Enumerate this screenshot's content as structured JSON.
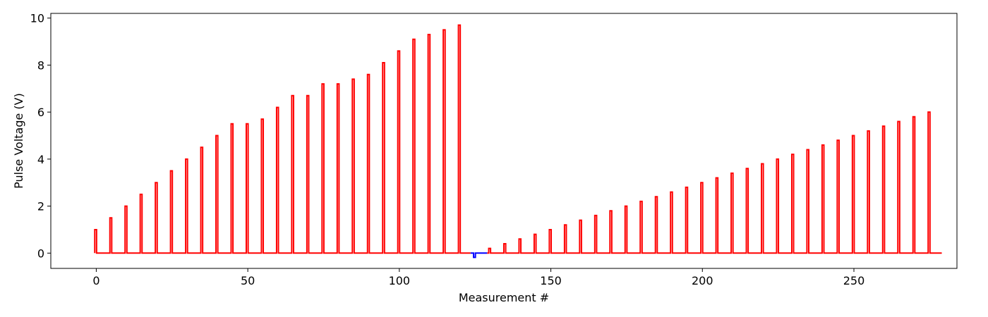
{
  "chart_data": {
    "type": "line",
    "title": "",
    "xlabel": "Measurement #",
    "ylabel": "Pulse Voltage (V)",
    "xlim": [
      -15,
      284
    ],
    "ylim": [
      -0.65,
      10.2
    ],
    "x_ticks": [
      0,
      50,
      100,
      150,
      200,
      250
    ],
    "y_ticks": [
      0,
      2,
      4,
      6,
      8,
      10
    ],
    "grid": false,
    "legend": "none",
    "pulse_width": 0.6,
    "baseline": 0,
    "series": [
      {
        "color": "#ff0000",
        "segment": "first-ramp",
        "pulses": [
          {
            "x": -0.5,
            "v": 1.0
          },
          {
            "x": 4.5,
            "v": 1.5
          },
          {
            "x": 9.5,
            "v": 2.0
          },
          {
            "x": 14.5,
            "v": 2.5
          },
          {
            "x": 19.5,
            "v": 3.0
          },
          {
            "x": 24.5,
            "v": 3.5
          },
          {
            "x": 29.5,
            "v": 4.0
          },
          {
            "x": 34.5,
            "v": 4.5
          },
          {
            "x": 39.5,
            "v": 5.0
          },
          {
            "x": 44.5,
            "v": 5.5
          },
          {
            "x": 49.5,
            "v": 5.5
          },
          {
            "x": 54.5,
            "v": 5.7
          },
          {
            "x": 59.5,
            "v": 6.2
          },
          {
            "x": 64.5,
            "v": 6.7
          },
          {
            "x": 69.5,
            "v": 6.7
          },
          {
            "x": 74.5,
            "v": 7.2
          },
          {
            "x": 79.5,
            "v": 7.2
          },
          {
            "x": 84.5,
            "v": 7.4
          },
          {
            "x": 89.5,
            "v": 7.6
          },
          {
            "x": 94.5,
            "v": 8.1
          },
          {
            "x": 99.5,
            "v": 8.6
          },
          {
            "x": 104.5,
            "v": 9.1
          },
          {
            "x": 109.5,
            "v": 9.3
          },
          {
            "x": 114.5,
            "v": 9.5
          },
          {
            "x": 119.5,
            "v": 9.7
          }
        ],
        "x_start": -0.5,
        "x_end": 123.5
      },
      {
        "color": "#0000ff",
        "segment": "negative-pulse",
        "pulses": [
          {
            "x": 124.5,
            "v": -0.18
          }
        ],
        "x_start": 123.5,
        "x_end": 129.0
      },
      {
        "color": "#ff0000",
        "segment": "second-ramp",
        "pulses": [
          {
            "x": 129.5,
            "v": 0.2
          },
          {
            "x": 134.5,
            "v": 0.4
          },
          {
            "x": 139.5,
            "v": 0.6
          },
          {
            "x": 144.5,
            "v": 0.8
          },
          {
            "x": 149.5,
            "v": 1.0
          },
          {
            "x": 154.5,
            "v": 1.2
          },
          {
            "x": 159.5,
            "v": 1.4
          },
          {
            "x": 164.5,
            "v": 1.6
          },
          {
            "x": 169.5,
            "v": 1.8
          },
          {
            "x": 174.5,
            "v": 2.0
          },
          {
            "x": 179.5,
            "v": 2.2
          },
          {
            "x": 184.5,
            "v": 2.4
          },
          {
            "x": 189.5,
            "v": 2.6
          },
          {
            "x": 194.5,
            "v": 2.8
          },
          {
            "x": 199.5,
            "v": 3.0
          },
          {
            "x": 204.5,
            "v": 3.2
          },
          {
            "x": 209.5,
            "v": 3.4
          },
          {
            "x": 214.5,
            "v": 3.6
          },
          {
            "x": 219.5,
            "v": 3.8
          },
          {
            "x": 224.5,
            "v": 4.0
          },
          {
            "x": 229.5,
            "v": 4.2
          },
          {
            "x": 234.5,
            "v": 4.4
          },
          {
            "x": 239.5,
            "v": 4.6
          },
          {
            "x": 244.5,
            "v": 4.8
          },
          {
            "x": 249.5,
            "v": 5.0
          },
          {
            "x": 254.5,
            "v": 5.2
          },
          {
            "x": 259.5,
            "v": 5.4
          },
          {
            "x": 264.5,
            "v": 5.6
          },
          {
            "x": 269.5,
            "v": 5.8
          },
          {
            "x": 274.5,
            "v": 6.0
          }
        ],
        "x_start": 129.0,
        "x_end": 279.0
      }
    ]
  }
}
